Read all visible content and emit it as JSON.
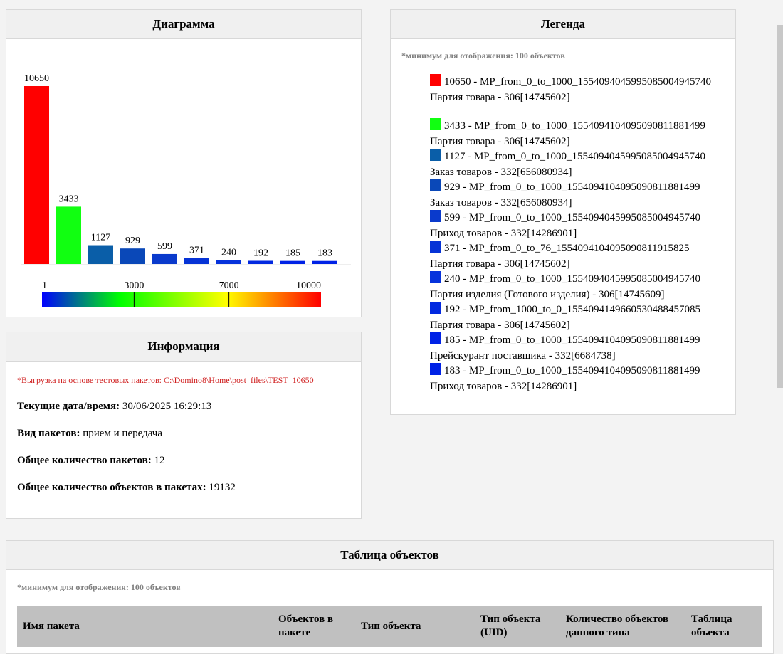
{
  "diagram": {
    "title": "Диаграмма",
    "scale": {
      "ticks": [
        "1",
        "3000",
        "7000",
        "10000"
      ]
    }
  },
  "chart_data": {
    "type": "bar",
    "categories": [
      "10650",
      "3433",
      "1127",
      "929",
      "599",
      "371",
      "240",
      "192",
      "185",
      "183"
    ],
    "values": [
      10650,
      3433,
      1127,
      929,
      599,
      371,
      240,
      192,
      185,
      183
    ],
    "colors": [
      "#ff0000",
      "#11ff11",
      "#0a5ea8",
      "#0a48b8",
      "#0a3acc",
      "#0633d6",
      "#0633dc",
      "#0229e0",
      "#0022e6",
      "#0022e6"
    ],
    "ylim": [
      0,
      10650
    ],
    "title": "",
    "xlabel": "",
    "ylabel": "",
    "grid": false,
    "color_scale_ticks": [
      1,
      3000,
      7000,
      10000
    ]
  },
  "legend": {
    "title": "Легенда",
    "note": "*минимум для отображения: 100 объектов",
    "items": [
      {
        "line1": "10650 - MP_from_0_to_1000_1554094045995085004945740",
        "line2": "Партия товара - 306[14745602]",
        "color": "#ff0000"
      },
      {
        "line1": "3433 - MP_from_0_to_1000_1554094104095090811881499",
        "line2": "Партия товара - 306[14745602]",
        "color": "#11ff11"
      },
      {
        "line1": "1127 - MP_from_0_to_1000_1554094045995085004945740",
        "line2": "Заказ товаров - 332[656080934]",
        "color": "#0a5ea8"
      },
      {
        "line1": "929 - MP_from_0_to_1000_1554094104095090811881499",
        "line2": "Заказ товаров - 332[656080934]",
        "color": "#0a48b8"
      },
      {
        "line1": "599 - MP_from_0_to_1000_1554094045995085004945740",
        "line2": "Приход товаров - 332[14286901]",
        "color": "#0a3acc"
      },
      {
        "line1": "371 - MP_from_0_to_76_1554094104095090811915825",
        "line2": "Партия товара - 306[14745602]",
        "color": "#0633d6"
      },
      {
        "line1": "240 - MP_from_0_to_1000_1554094045995085004945740",
        "line2": "Партия изделия (Готового изделия) - 306[14745609]",
        "color": "#0633dc"
      },
      {
        "line1": "192 - MP_from_1000_to_0_1554094149660530488457085",
        "line2": "Партия товара - 306[14745602]",
        "color": "#0229e0"
      },
      {
        "line1": "185 - MP_from_0_to_1000_1554094104095090811881499",
        "line2": "Прейскурант поставщика - 332[6684738]",
        "color": "#0022e6"
      },
      {
        "line1": "183 - MP_from_0_to_1000_1554094104095090811881499",
        "line2": "Приход товаров - 332[14286901]",
        "color": "#0022e6"
      }
    ]
  },
  "info": {
    "title": "Информация",
    "note": "*Выгрузка на основе тестовых пакетов: C:\\Domino8\\Home\\post_files\\TEST_10650",
    "datetime_label": "Текущие дата/время:",
    "datetime_value": " 30/06/2025 16:29:13",
    "type_label": "Вид пакетов:",
    "type_value": " прием и передача",
    "count_label": "Общее количество пакетов:",
    "count_value": " 12",
    "objects_label": "Общее количество объектов в пакетах:",
    "objects_value": " 19132"
  },
  "table": {
    "title": "Таблица объектов",
    "note": "*минимум для отображения: 100 объектов",
    "columns": [
      "Имя пакета",
      "Объектов в пакете",
      "Тип объекта",
      "Тип объекта (UID)",
      "Количество объектов данного типа",
      "Таблица объекта"
    ]
  }
}
